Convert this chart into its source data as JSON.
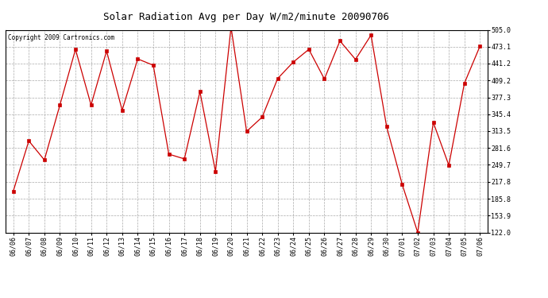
{
  "title": "Solar Radiation Avg per Day W/m2/minute 20090706",
  "copyright": "Copyright 2009 Cartronics.com",
  "dates": [
    "06/06",
    "06/07",
    "06/08",
    "06/09",
    "06/10",
    "06/11",
    "06/12",
    "06/13",
    "06/14",
    "06/15",
    "06/16",
    "06/17",
    "06/18",
    "06/19",
    "06/20",
    "06/21",
    "06/22",
    "06/23",
    "06/24",
    "06/25",
    "06/26",
    "06/27",
    "06/28",
    "06/29",
    "06/30",
    "07/01",
    "07/02",
    "07/03",
    "07/04",
    "07/05",
    "07/06"
  ],
  "values": [
    200.0,
    295.0,
    259.0,
    363.0,
    468.0,
    363.0,
    465.0,
    353.0,
    450.0,
    438.0,
    270.0,
    261.0,
    388.0,
    237.0,
    510.0,
    313.0,
    340.0,
    413.0,
    444.0,
    468.0,
    412.0,
    484.0,
    449.0,
    495.0,
    322.0,
    213.0,
    122.0,
    330.0,
    249.0,
    404.0,
    474.0
  ],
  "line_color": "#cc0000",
  "marker": "s",
  "marker_size": 2.5,
  "ylim": [
    122.0,
    505.0
  ],
  "yticks": [
    122.0,
    153.9,
    185.8,
    217.8,
    249.7,
    281.6,
    313.5,
    345.4,
    377.3,
    409.2,
    441.2,
    473.1,
    505.0
  ],
  "background_color": "#ffffff",
  "grid_color": "#aaaaaa",
  "title_fontsize": 9,
  "tick_fontsize": 6,
  "copyright_fontsize": 5.5
}
